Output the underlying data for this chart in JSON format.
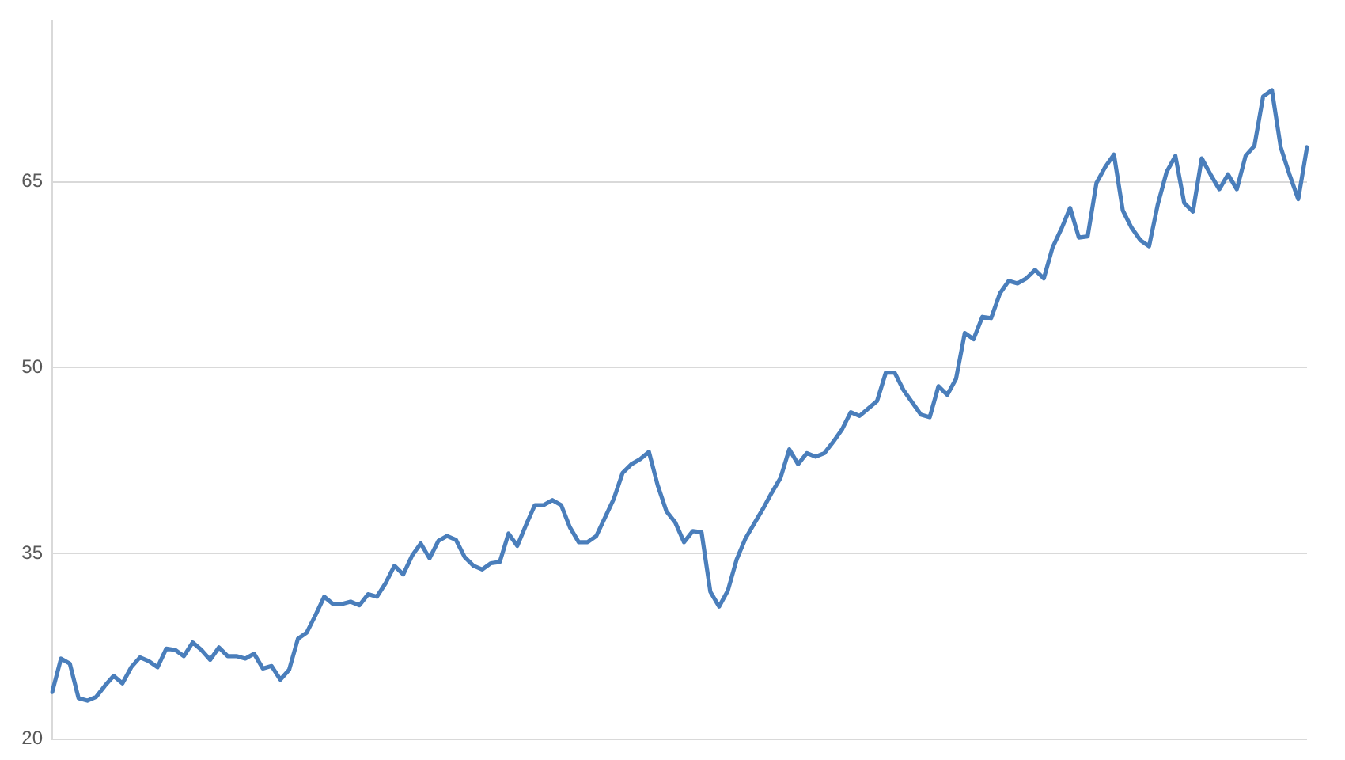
{
  "chart_data": {
    "type": "line",
    "categories": [
      null,
      null,
      null,
      null,
      null,
      null,
      null,
      null,
      null,
      null,
      null,
      null,
      null,
      null,
      null,
      null,
      null,
      null,
      null,
      null,
      null,
      null,
      null,
      null,
      null,
      null,
      null,
      null,
      null,
      null,
      null,
      null,
      null,
      null,
      null,
      null,
      null,
      null,
      null,
      null,
      null,
      null,
      null,
      null,
      null,
      null,
      null,
      null,
      null,
      null,
      null,
      null,
      null,
      null,
      null,
      null,
      null,
      null,
      null,
      null,
      null,
      null,
      null,
      null,
      null,
      null,
      null,
      null,
      null,
      null,
      null,
      null,
      null,
      null,
      null,
      null,
      null,
      null,
      null,
      null,
      null,
      null,
      null,
      null,
      null,
      null,
      null,
      null,
      null,
      null,
      null,
      null,
      null,
      null,
      null,
      null,
      null,
      null,
      null,
      null,
      null,
      null,
      null,
      null,
      null,
      null,
      null,
      null,
      null,
      null,
      null,
      null,
      null,
      null,
      null,
      null,
      null,
      null,
      null,
      null,
      null,
      null,
      null,
      null,
      null,
      null,
      null,
      null,
      null,
      null,
      null,
      null,
      null,
      null,
      null,
      null,
      null,
      null,
      null,
      null,
      null,
      null,
      null,
      null
    ],
    "series": [
      {
        "color": "#4a7ebb",
        "values": [
          23.8,
          26.5,
          26.1,
          23.3,
          23.1,
          23.4,
          24.3,
          25.1,
          24.5,
          25.8,
          26.6,
          26.3,
          25.8,
          27.3,
          27.2,
          26.7,
          27.8,
          27.2,
          26.4,
          27.4,
          26.7,
          26.7,
          26.5,
          26.9,
          25.7,
          25.9,
          24.8,
          25.6,
          28.1,
          28.6,
          30.0,
          31.5,
          30.9,
          30.9,
          31.1,
          30.8,
          31.7,
          31.5,
          32.6,
          34.0,
          33.3,
          34.8,
          35.8,
          34.6,
          36.0,
          36.4,
          36.1,
          34.7,
          34.0,
          33.7,
          34.2,
          34.3,
          36.6,
          35.6,
          37.3,
          38.9,
          38.9,
          39.3,
          38.9,
          37.1,
          35.9,
          35.9,
          36.4,
          37.9,
          39.4,
          41.5,
          42.2,
          42.6,
          43.2,
          40.5,
          38.4,
          37.5,
          35.9,
          36.8,
          36.7,
          31.9,
          30.7,
          32.0,
          34.5,
          36.2,
          37.4,
          38.6,
          39.9,
          41.1,
          43.4,
          42.2,
          43.1,
          42.8,
          43.1,
          44.0,
          45.0,
          46.4,
          46.1,
          46.7,
          47.3,
          49.6,
          49.6,
          48.2,
          47.2,
          46.2,
          46.0,
          48.5,
          47.8,
          49.1,
          52.8,
          52.3,
          54.1,
          54.0,
          56.0,
          57.0,
          56.8,
          57.2,
          57.9,
          57.2,
          59.7,
          61.2,
          62.9,
          60.5,
          60.6,
          64.9,
          66.2,
          67.2,
          62.7,
          61.3,
          60.3,
          59.8,
          63.2,
          65.8,
          67.1,
          63.3,
          62.6,
          66.9,
          65.6,
          64.4,
          65.6,
          64.4,
          67.1,
          67.9,
          71.9,
          72.4,
          67.8,
          65.6,
          63.6,
          67.8
        ]
      }
    ],
    "ylim": [
      20,
      78
    ],
    "yticks": [
      20,
      35,
      50,
      65
    ],
    "tick_labels": "y",
    "grid": "y",
    "legend": false,
    "marker": "none",
    "line_style": "solid"
  }
}
